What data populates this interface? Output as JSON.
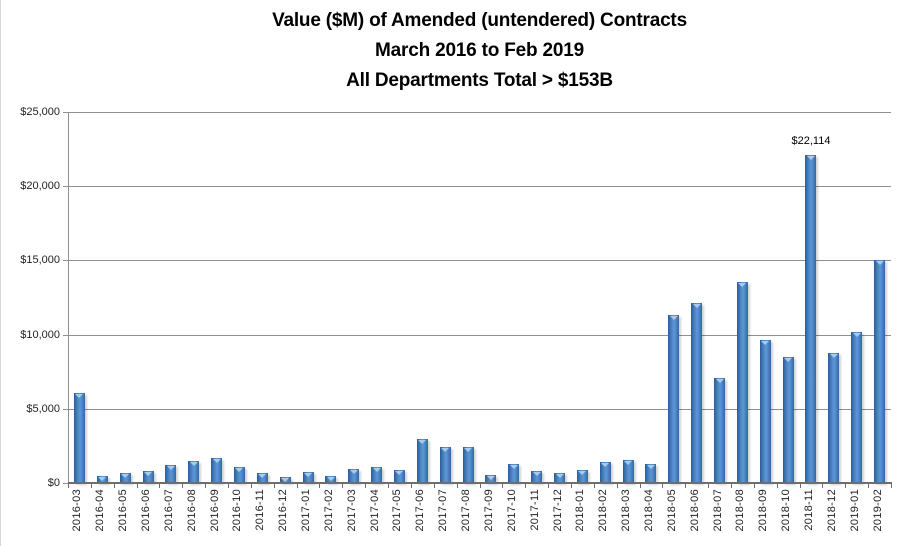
{
  "chart_data": {
    "type": "bar",
    "title_lines": [
      "Value ($M) of Amended (untendered) Contracts",
      "March 2016 to Feb 2019",
      "All Departments Total > $153B"
    ],
    "xlabel": "",
    "ylabel": "",
    "ylim": [
      0,
      25000
    ],
    "grid": true,
    "legend_position": "none",
    "categories": [
      "2016-03",
      "2016-04",
      "2016-05",
      "2016-06",
      "2016-07",
      "2016-08",
      "2016-09",
      "2016-10",
      "2016-11",
      "2016-12",
      "2017-01",
      "2017-02",
      "2017-03",
      "2017-04",
      "2017-05",
      "2017-06",
      "2017-07",
      "2017-08",
      "2017-09",
      "2017-10",
      "2017-11",
      "2017-12",
      "2018-01",
      "2018-02",
      "2018-03",
      "2018-04",
      "2018-05",
      "2018-06",
      "2018-07",
      "2018-08",
      "2018-09",
      "2018-10",
      "2018-11",
      "2018-12",
      "2019-01",
      "2019-02"
    ],
    "values": [
      6050,
      450,
      650,
      830,
      1200,
      1480,
      1690,
      1100,
      700,
      420,
      760,
      470,
      920,
      1050,
      880,
      2950,
      2400,
      2400,
      520,
      1260,
      830,
      650,
      860,
      1440,
      1550,
      1260,
      11300,
      12100,
      7100,
      13550,
      9650,
      8500,
      22114,
      8750,
      10150,
      15050
    ],
    "yticks": [
      {
        "value": 0,
        "label": "$0"
      },
      {
        "value": 5000,
        "label": "$5,000"
      },
      {
        "value": 10000,
        "label": "$10,000"
      },
      {
        "value": 15000,
        "label": "$15,000"
      },
      {
        "value": 20000,
        "label": "$20,000"
      },
      {
        "value": 25000,
        "label": "$25,000"
      }
    ],
    "annotation": {
      "category": "2018-11",
      "text": "$22,114"
    },
    "colors": {
      "bar_edge": "#28598f",
      "bar_mid": "#4782c2",
      "bar_highlight": "#5f97d3",
      "bar_right": "#34679f",
      "bar_cap": "#a8cbec",
      "gridline": "#8f8f8f",
      "axis": "#6e6e6e",
      "text": "#1f1f1f"
    }
  }
}
